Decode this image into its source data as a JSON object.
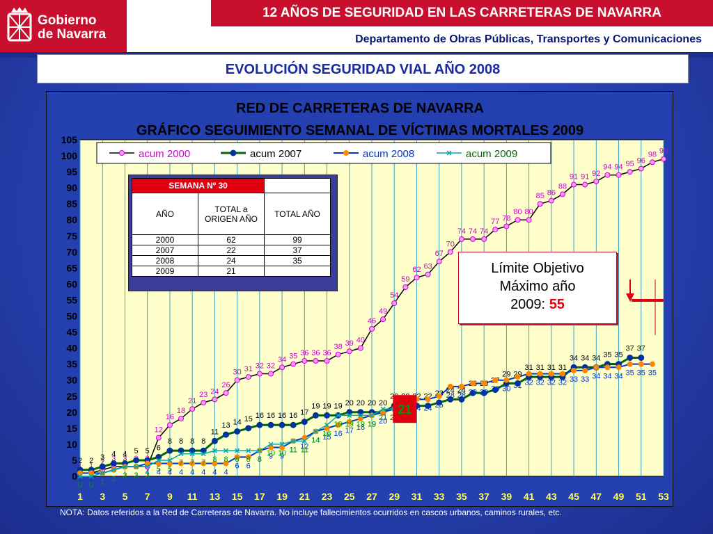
{
  "header": {
    "logo_text_line1": "Gobierno",
    "logo_text_line2": "de Navarra",
    "banner": "12 AÑOS DE SEGURIDAD EN LAS CARRETERAS DE NAVARRA",
    "department": "Departamento de Obras Públicas, Transportes y Comunicaciones"
  },
  "page_title": "EVOLUCIÓN SEGURIDAD VIAL AÑO 2008",
  "note": "NOTA: Datos referidos a la Red de Carreteras de Navarra. No incluye fallecimientos ocurridos en cascos urbanos, caminos rurales, etc.",
  "summary_table": {
    "week_label": "SEMANA Nº 30",
    "col_year": "AÑO",
    "col_total_origin": "TOTAL a ORIGEN AÑO",
    "col_total_year": "TOTAL AÑO",
    "rows": [
      {
        "year": "2000",
        "origin": "62",
        "total": "99"
      },
      {
        "year": "2007",
        "origin": "22",
        "total": "37"
      },
      {
        "year": "2008",
        "origin": "24",
        "total": "35"
      },
      {
        "year": "2009",
        "origin": "21",
        "total": ""
      }
    ]
  },
  "limit_box": {
    "line1": "Límite Objetivo",
    "line2": "Máximo año",
    "line3": "2009:",
    "value": "55"
  },
  "colors": {
    "acum2000": "#cc00cc",
    "acum2007": "#006600",
    "acum2008": "#0033cc",
    "acum2009": "#00aaaa",
    "plot_bg": "#ffffcc",
    "marker2000": "#ff99ff",
    "marker2007": "#003399",
    "marker2008": "#ff8800"
  },
  "chart_data": {
    "type": "line",
    "title": "RED DE CARRETERAS DE NAVARRA",
    "subtitle": "GRÁFICO SEGUIMIENTO SEMANAL DE VÍCTIMAS MORTALES 2009",
    "ylim": [
      0,
      105
    ],
    "yticks": [
      0,
      5,
      10,
      15,
      20,
      25,
      30,
      35,
      40,
      45,
      50,
      55,
      60,
      65,
      70,
      75,
      80,
      85,
      90,
      95,
      100,
      105
    ],
    "xlim": [
      1,
      53
    ],
    "xticks": [
      1,
      3,
      5,
      7,
      9,
      11,
      13,
      15,
      17,
      19,
      21,
      23,
      25,
      27,
      29,
      31,
      33,
      35,
      37,
      39,
      41,
      43,
      45,
      47,
      49,
      51,
      53
    ],
    "legend": [
      "acum 2000",
      "acum 2007",
      "acum 2008",
      "acum 2009"
    ],
    "grid": true,
    "series": [
      {
        "name": "acum 2000",
        "x": [
          1,
          2,
          3,
          4,
          5,
          6,
          7,
          8,
          9,
          10,
          11,
          12,
          13,
          14,
          15,
          16,
          17,
          18,
          19,
          20,
          21,
          22,
          23,
          24,
          25,
          26,
          27,
          28,
          29,
          30,
          31,
          32,
          33,
          34,
          35,
          36,
          37,
          38,
          39,
          40,
          41,
          42,
          43,
          44,
          45,
          46,
          47,
          48,
          49,
          50,
          51,
          52,
          53
        ],
        "values": [
          1,
          1,
          2,
          3,
          3,
          3,
          3,
          12,
          16,
          18,
          21,
          23,
          24,
          26,
          30,
          31,
          32,
          32,
          34,
          35,
          36,
          36,
          36,
          38,
          39,
          40,
          46,
          49,
          54,
          59,
          62,
          63,
          67,
          70,
          74,
          74,
          74,
          77,
          78,
          80,
          80,
          85,
          86,
          88,
          91,
          91,
          92,
          94,
          94,
          95,
          96,
          98,
          99
        ]
      },
      {
        "name": "acum 2007",
        "x": [
          1,
          2,
          3,
          4,
          5,
          6,
          7,
          8,
          9,
          10,
          11,
          12,
          13,
          14,
          15,
          16,
          17,
          18,
          19,
          20,
          21,
          22,
          23,
          24,
          25,
          26,
          27,
          28,
          29,
          30,
          31,
          32,
          33,
          34,
          35,
          36,
          37,
          38,
          39,
          40,
          41,
          42,
          43,
          44,
          45,
          46,
          47,
          48,
          49,
          50,
          51
        ],
        "values": [
          2,
          2,
          3,
          4,
          4,
          5,
          5,
          6,
          8,
          8,
          8,
          8,
          11,
          13,
          14,
          15,
          16,
          16,
          16,
          16,
          17,
          19,
          19,
          19,
          20,
          20,
          20,
          20,
          22,
          22,
          22,
          22,
          23,
          24,
          24,
          26,
          26,
          27,
          29,
          29,
          31,
          31,
          31,
          31,
          34,
          34,
          34,
          35,
          35,
          37,
          37
        ]
      },
      {
        "name": "acum 2008",
        "x": [
          1,
          2,
          3,
          4,
          5,
          6,
          7,
          8,
          9,
          10,
          11,
          12,
          13,
          14,
          15,
          16,
          17,
          18,
          19,
          20,
          21,
          22,
          23,
          24,
          25,
          26,
          27,
          28,
          29,
          30,
          31,
          32,
          33,
          34,
          35,
          36,
          37,
          38,
          39,
          40,
          41,
          42,
          43,
          44,
          45,
          46,
          47,
          48,
          49,
          50,
          51,
          52
        ],
        "values": [
          1,
          1,
          1,
          2,
          3,
          3,
          4,
          4,
          4,
          4,
          4,
          4,
          4,
          4,
          6,
          6,
          8,
          9,
          9,
          11,
          12,
          14,
          15,
          16,
          17,
          18,
          19,
          20,
          21,
          24,
          24,
          24,
          25,
          28,
          28,
          29,
          29,
          30,
          30,
          31,
          32,
          32,
          32,
          32,
          33,
          33,
          34,
          34,
          34,
          35,
          35,
          35
        ]
      },
      {
        "name": "acum 2009",
        "x": [
          1,
          2,
          3,
          4,
          5,
          6,
          7,
          8,
          9,
          10,
          11,
          12,
          13,
          14,
          15,
          16,
          17,
          18,
          19,
          20,
          21,
          22,
          23,
          24,
          25,
          26,
          27,
          28,
          29,
          30
        ],
        "values": [
          0,
          0,
          1,
          2,
          3,
          3,
          3,
          5,
          5,
          7,
          7,
          7,
          8,
          8,
          8,
          8,
          8,
          10,
          10,
          11,
          11,
          14,
          16,
          19,
          19,
          19,
          19,
          21,
          21,
          21
        ]
      }
    ]
  }
}
